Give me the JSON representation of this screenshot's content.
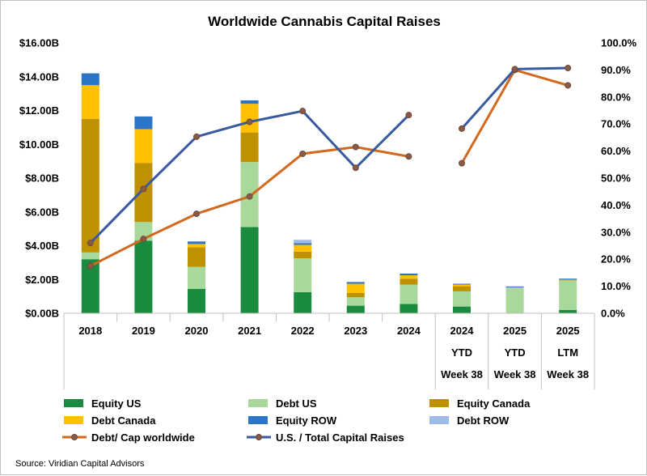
{
  "chart_data": {
    "type": "bar",
    "title": "Worldwide Cannabis Capital Raises",
    "source": "Source: Viridian Capital Advisors",
    "categories": [
      [
        "2018"
      ],
      [
        "2019"
      ],
      [
        "2020"
      ],
      [
        "2021"
      ],
      [
        "2022"
      ],
      [
        "2023"
      ],
      [
        "2024"
      ],
      [
        "2024",
        "YTD",
        "Week 38"
      ],
      [
        "2025",
        "YTD",
        "Week 38"
      ],
      [
        "2025",
        "LTM",
        "Week 38"
      ]
    ],
    "y_left": {
      "min": 0,
      "max": 16,
      "step": 2,
      "tick_labels": [
        "$0.00B",
        "$2.00B",
        "$4.00B",
        "$6.00B",
        "$8.00B",
        "$10.00B",
        "$12.00B",
        "$14.00B",
        "$16.00B"
      ]
    },
    "y_right": {
      "min": 0,
      "max": 100,
      "step": 10,
      "tick_labels": [
        "0.0%",
        "10.0%",
        "20.0%",
        "30.0%",
        "40.0%",
        "50.0%",
        "60.0%",
        "70.0%",
        "80.0%",
        "90.0%",
        "100.0%"
      ]
    },
    "series": [
      {
        "name": "Equity US",
        "kind": "bar",
        "color": "#1a8a3e",
        "values": [
          3.2,
          4.3,
          1.45,
          5.1,
          1.25,
          0.45,
          0.55,
          0.4,
          0.02,
          0.2
        ]
      },
      {
        "name": "Debt US",
        "kind": "bar",
        "color": "#a9d99a",
        "values": [
          0.4,
          1.1,
          1.3,
          3.85,
          2.0,
          0.5,
          1.15,
          0.9,
          1.5,
          1.75
        ]
      },
      {
        "name": "Equity Canada",
        "kind": "bar",
        "color": "#bf9000",
        "values": [
          7.9,
          3.5,
          1.15,
          1.75,
          0.4,
          0.25,
          0.35,
          0.3,
          0.02,
          0.05
        ]
      },
      {
        "name": "Debt Canada",
        "kind": "bar",
        "color": "#ffc000",
        "values": [
          2.0,
          2.0,
          0.2,
          1.7,
          0.4,
          0.55,
          0.2,
          0.1,
          0.0,
          0.0
        ]
      },
      {
        "name": "Equity ROW",
        "kind": "bar",
        "color": "#2a75c7",
        "values": [
          0.7,
          0.75,
          0.15,
          0.2,
          0.1,
          0.1,
          0.1,
          0.05,
          0.05,
          0.05
        ]
      },
      {
        "name": "Debt ROW",
        "kind": "bar",
        "color": "#9dbbe6",
        "values": [
          0.0,
          0.0,
          0.0,
          0.0,
          0.2,
          0.0,
          0.0,
          0.0,
          0.0,
          0.0
        ]
      },
      {
        "name": "Debt/ Cap worldwide",
        "kind": "line",
        "axis": "right",
        "color": "#d2691e",
        "values": [
          17.5,
          27.5,
          36.8,
          43.2,
          59.0,
          61.5,
          58.0,
          55.5,
          90.0,
          84.3
        ],
        "breaks_after": [
          6
        ]
      },
      {
        "name": "U.S. / Total Capital Raises",
        "kind": "line",
        "axis": "right",
        "color": "#3a5aa0",
        "values": [
          26.0,
          46.0,
          65.3,
          70.8,
          74.8,
          53.8,
          73.3,
          68.3,
          90.3,
          90.7
        ],
        "breaks_after": [
          6
        ]
      }
    ],
    "legend": [
      "Equity US",
      "Debt US",
      "Equity Canada",
      "Debt Canada",
      "Equity ROW",
      "Debt ROW",
      "Debt/ Cap worldwide",
      "U.S. / Total Capital Raises"
    ]
  }
}
